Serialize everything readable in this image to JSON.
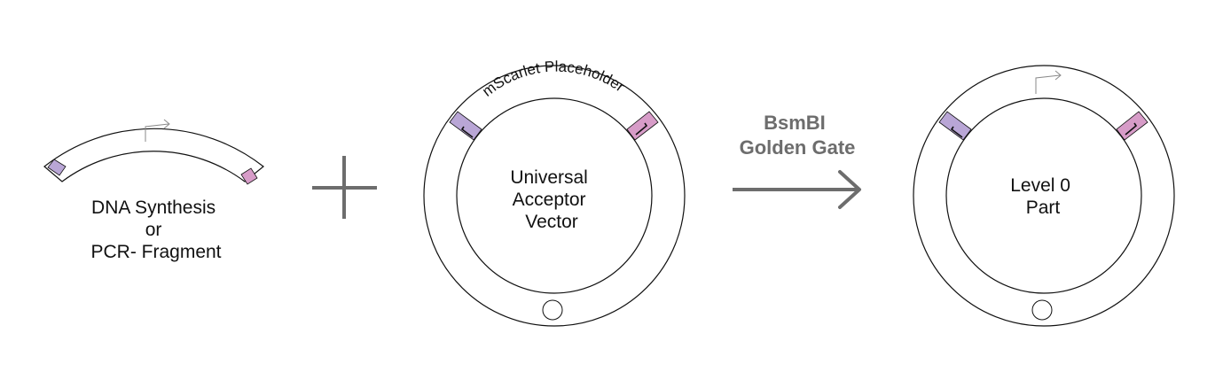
{
  "fragment": {
    "label_lines": [
      "DNA Synthesis",
      "or",
      "PCR- Fragment"
    ]
  },
  "plus": {
    "symbol": "plus-sign"
  },
  "acceptor": {
    "arc_label": "mScarlet Placeholder",
    "label_lines": [
      "Universal",
      "Acceptor",
      "Vector"
    ]
  },
  "reaction": {
    "label_lines": [
      "BsmBI",
      "Golden Gate"
    ]
  },
  "product": {
    "label_lines": [
      "Level 0",
      "Part"
    ]
  },
  "colors": {
    "outline": "#111111",
    "left_overhang": "#b9a6d6",
    "right_overhang": "#d79cc8",
    "arrow_gray": "#6d6d6d",
    "promoter_arrow": "#8a8a8a"
  }
}
